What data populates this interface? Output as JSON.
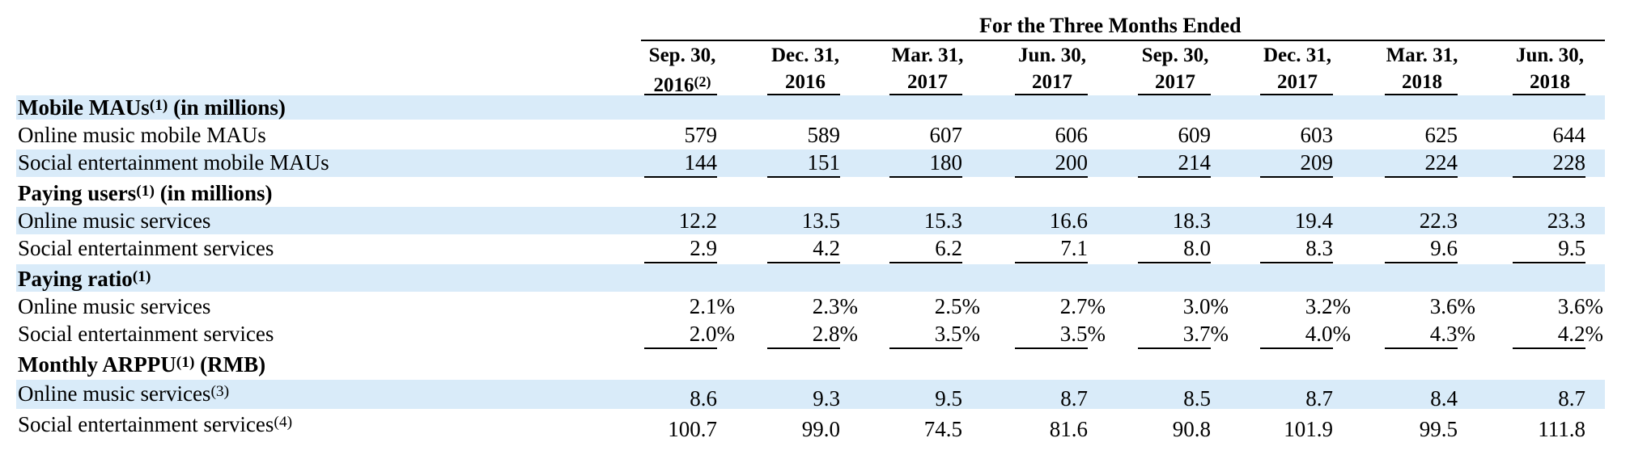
{
  "header": {
    "group_title": "For the Three Months Ended",
    "columns": [
      {
        "line1": "Sep. 30,",
        "line2": "2016",
        "note": "(2)"
      },
      {
        "line1": "Dec. 31,",
        "line2": "2016",
        "note": ""
      },
      {
        "line1": "Mar. 31,",
        "line2": "2017",
        "note": ""
      },
      {
        "line1": "Jun. 30,",
        "line2": "2017",
        "note": ""
      },
      {
        "line1": "Sep. 30,",
        "line2": "2017",
        "note": ""
      },
      {
        "line1": "Dec. 31,",
        "line2": "2017",
        "note": ""
      },
      {
        "line1": "Mar. 31,",
        "line2": "2018",
        "note": ""
      },
      {
        "line1": "Jun. 30,",
        "line2": "2018",
        "note": ""
      }
    ]
  },
  "sections": [
    {
      "title": "Mobile MAUs",
      "note": "(1)",
      "suffix": " (in millions)",
      "rows": [
        {
          "label": "Online music mobile MAUs",
          "note": "",
          "values": [
            "579",
            "589",
            "607",
            "606",
            "609",
            "603",
            "625",
            "644"
          ]
        },
        {
          "label": "Social entertainment mobile MAUs",
          "note": "",
          "values": [
            "144",
            "151",
            "180",
            "200",
            "214",
            "209",
            "224",
            "228"
          ]
        }
      ]
    },
    {
      "title": "Paying users",
      "note": "(1)",
      "suffix": " (in millions)",
      "rows": [
        {
          "label": "Online music services",
          "note": "",
          "values": [
            "12.2",
            "13.5",
            "15.3",
            "16.6",
            "18.3",
            "19.4",
            "22.3",
            "23.3"
          ]
        },
        {
          "label": "Social entertainment services",
          "note": "",
          "values": [
            "2.9",
            "4.2",
            "6.2",
            "7.1",
            "8.0",
            "8.3",
            "9.6",
            "9.5"
          ]
        }
      ]
    },
    {
      "title": "Paying ratio",
      "note": "(1)",
      "suffix": "",
      "rows": [
        {
          "label": "Online music services",
          "note": "",
          "values": [
            "2.1%",
            "2.3%",
            "2.5%",
            "2.7%",
            "3.0%",
            "3.2%",
            "3.6%",
            "3.6%"
          ]
        },
        {
          "label": "Social entertainment services",
          "note": "",
          "values": [
            "2.0%",
            "2.8%",
            "3.5%",
            "3.5%",
            "3.7%",
            "4.0%",
            "4.3%",
            "4.2%"
          ]
        }
      ]
    },
    {
      "title": "Monthly ARPPU",
      "note": "(1)",
      "suffix": " (RMB)",
      "rows": [
        {
          "label": "Online music services",
          "note": "(3)",
          "values": [
            "8.6",
            "9.3",
            "9.5",
            "8.7",
            "8.5",
            "8.7",
            "8.4",
            "8.7"
          ]
        },
        {
          "label": "Social entertainment services",
          "note": "(4)",
          "values": [
            "100.7",
            "99.0",
            "74.5",
            "81.6",
            "90.8",
            "101.9",
            "99.5",
            "111.8"
          ]
        }
      ]
    }
  ]
}
